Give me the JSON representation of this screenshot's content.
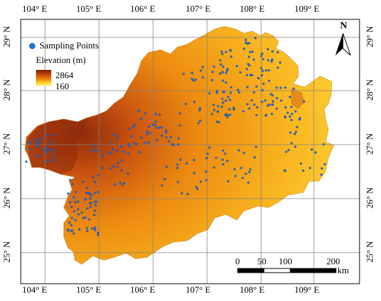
{
  "lon_ticks": [
    "104° E",
    "105° E",
    "106° E",
    "107° E",
    "108° E",
    "109° E"
  ],
  "lat_ticks": [
    "29° N",
    "28° N",
    "27° N",
    "26° N",
    "25° N"
  ],
  "legend": {
    "sampling_label": "Sampling Points",
    "elevation_title": "Elevation (m)",
    "elev_max": "2864",
    "elev_min": "160"
  },
  "north_arrow": {
    "label": "N"
  },
  "scale_bar": {
    "labels": [
      "0",
      "50",
      "100",
      "200"
    ],
    "unit": "km"
  },
  "colors": {
    "sampling_point": "#1f6fd8",
    "elevation_high": "#7a1f0a",
    "elevation_low": "#fff27a",
    "graticule": "#808080"
  }
}
